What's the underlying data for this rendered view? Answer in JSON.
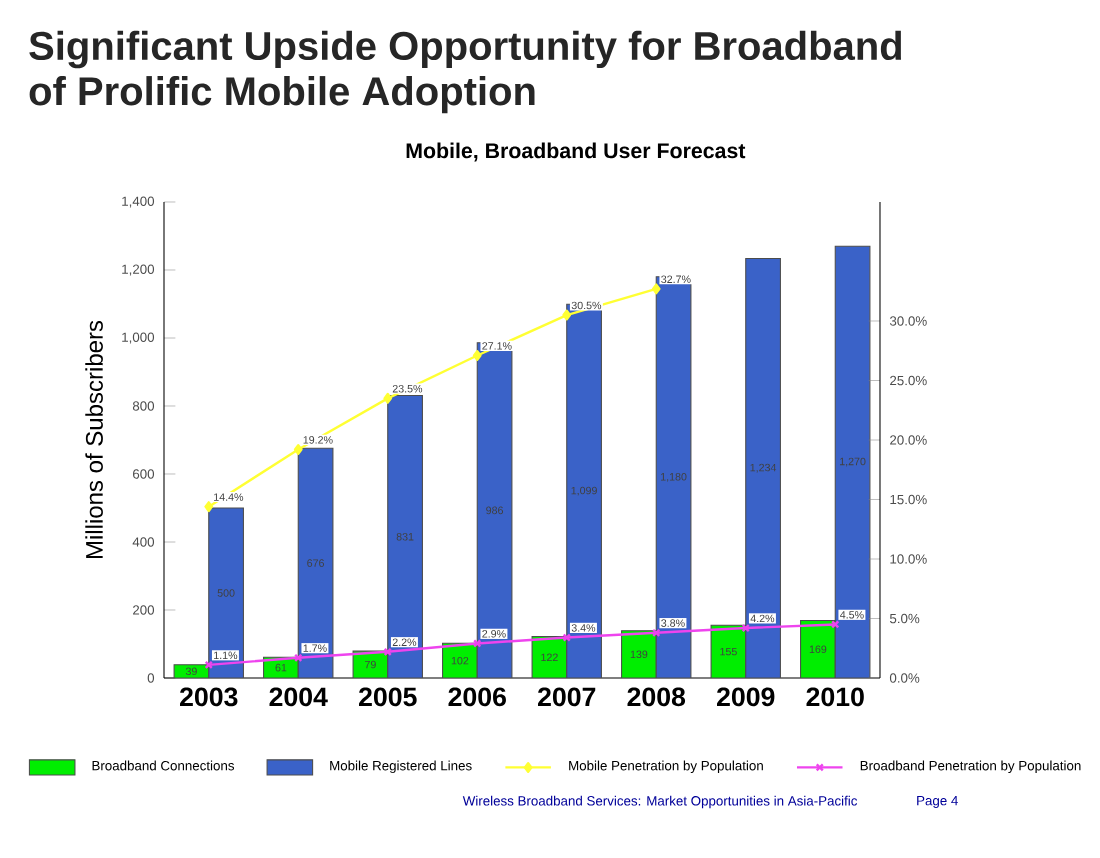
{
  "chart_data": {
    "type": "bar",
    "title": "Mobile, Broadband User Forecast",
    "annotations": [
      "Significant Upside Opportunity for Broadband",
      "of Prolific Mobile Adoption",
      "Wireless Broadband Services: Market Opportunities in Asia-Pacific",
      "Page 4"
    ],
    "ylabel": "Millions of Subscribers",
    "categories": [
      "2003",
      "2004",
      "2005",
      "2006",
      "2007",
      "2008",
      "2009",
      "2010"
    ],
    "series": [
      {
        "name": "Broadband Connections",
        "color": "#00ee00",
        "values": [
          39,
          61,
          79,
          102,
          122,
          139,
          155,
          169
        ],
        "value_labels": [
          "39",
          "61",
          "79",
          "102",
          "122",
          "139",
          "155",
          "169"
        ]
      },
      {
        "name": "Mobile Registered Lines",
        "color": "#3a62c8",
        "values": [
          500,
          676,
          831,
          986,
          1099,
          1180,
          1234,
          1270
        ],
        "value_labels": [
          "500",
          "676",
          "831",
          "986",
          "1,099",
          "1,180",
          "1,234",
          "1,270"
        ]
      },
      {
        "name": "Mobile Penetration by Population",
        "type": "line",
        "axis": "y2",
        "marker": "diamond",
        "color": "#ffff33",
        "values": [
          14.4,
          19.2,
          23.5,
          27.1,
          30.5,
          32.7,
          null,
          null
        ],
        "value_labels": [
          "14.4%",
          "19.2%",
          "23.5%",
          "27.1%",
          "30.5%",
          "32.7%",
          null,
          null
        ]
      },
      {
        "name": "Broadband Penetration by Population",
        "type": "line",
        "axis": "y2",
        "marker": "cross",
        "color": "#ee44ee",
        "values": [
          1.1,
          1.7,
          2.2,
          2.9,
          3.4,
          3.8,
          4.2,
          4.5
        ],
        "value_labels": [
          "1.1%",
          "1.7%",
          "2.2%",
          "2.9%",
          "3.4%",
          "3.8%",
          "4.2%",
          "4.5%"
        ]
      }
    ],
    "ylim": [
      0,
      1400
    ],
    "yticks": [
      0,
      200,
      400,
      600,
      800,
      {
        "value": 1000,
        "label": "1,000"
      },
      {
        "value": 1200,
        "label": "1,200"
      },
      {
        "value": 1400,
        "label": "1,400"
      }
    ],
    "y2lim": [
      0,
      40
    ],
    "y2ticks": [
      {
        "value": 0,
        "label": "0.0%"
      },
      {
        "value": 5,
        "label": "5.0%"
      },
      {
        "value": 10,
        "label": "10.0%"
      },
      {
        "value": 15,
        "label": "15.0%"
      },
      {
        "value": 20,
        "label": "20.0%"
      },
      {
        "value": 25,
        "label": "25.0%"
      },
      {
        "value": 30,
        "label": "30.0%"
      }
    ],
    "legend": "bottom",
    "grid": false
  }
}
